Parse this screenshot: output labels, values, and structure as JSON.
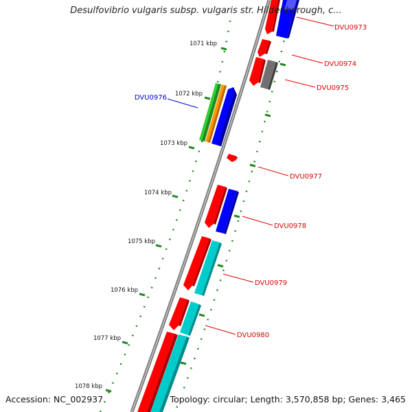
{
  "header": {
    "title": "Desulfovibrio vulgaris subsp. vulgaris str. Hildenborough, c..."
  },
  "footer": {
    "accession": "Accession: NC_002937",
    "topology": "Topology: circular; Length: 3,570,858 bp; Genes: 3,465"
  },
  "map": {
    "highlighted_gene": "DVU0976",
    "colors": {
      "backbone": "#8a8a8a",
      "tick": "#1f8a1f",
      "label_red": "#dd0000",
      "label_blue": "#0000cc",
      "red": "#ff0000",
      "blue": "#0000ff",
      "gray": "#707070",
      "green": "#33cc33",
      "orange": "#ff9900",
      "cyan": "#00cccc"
    },
    "kbp_labels": [
      {
        "text": "1071 kbp"
      },
      {
        "text": "1072 kbp"
      },
      {
        "text": "1073 kbp"
      },
      {
        "text": "1074 kbp"
      },
      {
        "text": "1075 kbp"
      },
      {
        "text": "1076 kbp"
      },
      {
        "text": "1077 kbp"
      },
      {
        "text": "1078 kbp"
      }
    ],
    "gene_labels": [
      {
        "text": "DVU0973",
        "color": "red"
      },
      {
        "text": "DVU0974",
        "color": "red"
      },
      {
        "text": "DVU0975",
        "color": "red"
      },
      {
        "text": "DVU0976",
        "color": "blue"
      },
      {
        "text": "DVU0977",
        "color": "red"
      },
      {
        "text": "DVU0978",
        "color": "red"
      },
      {
        "text": "DVU0979",
        "color": "red"
      },
      {
        "text": "DVU0980",
        "color": "red"
      }
    ]
  }
}
